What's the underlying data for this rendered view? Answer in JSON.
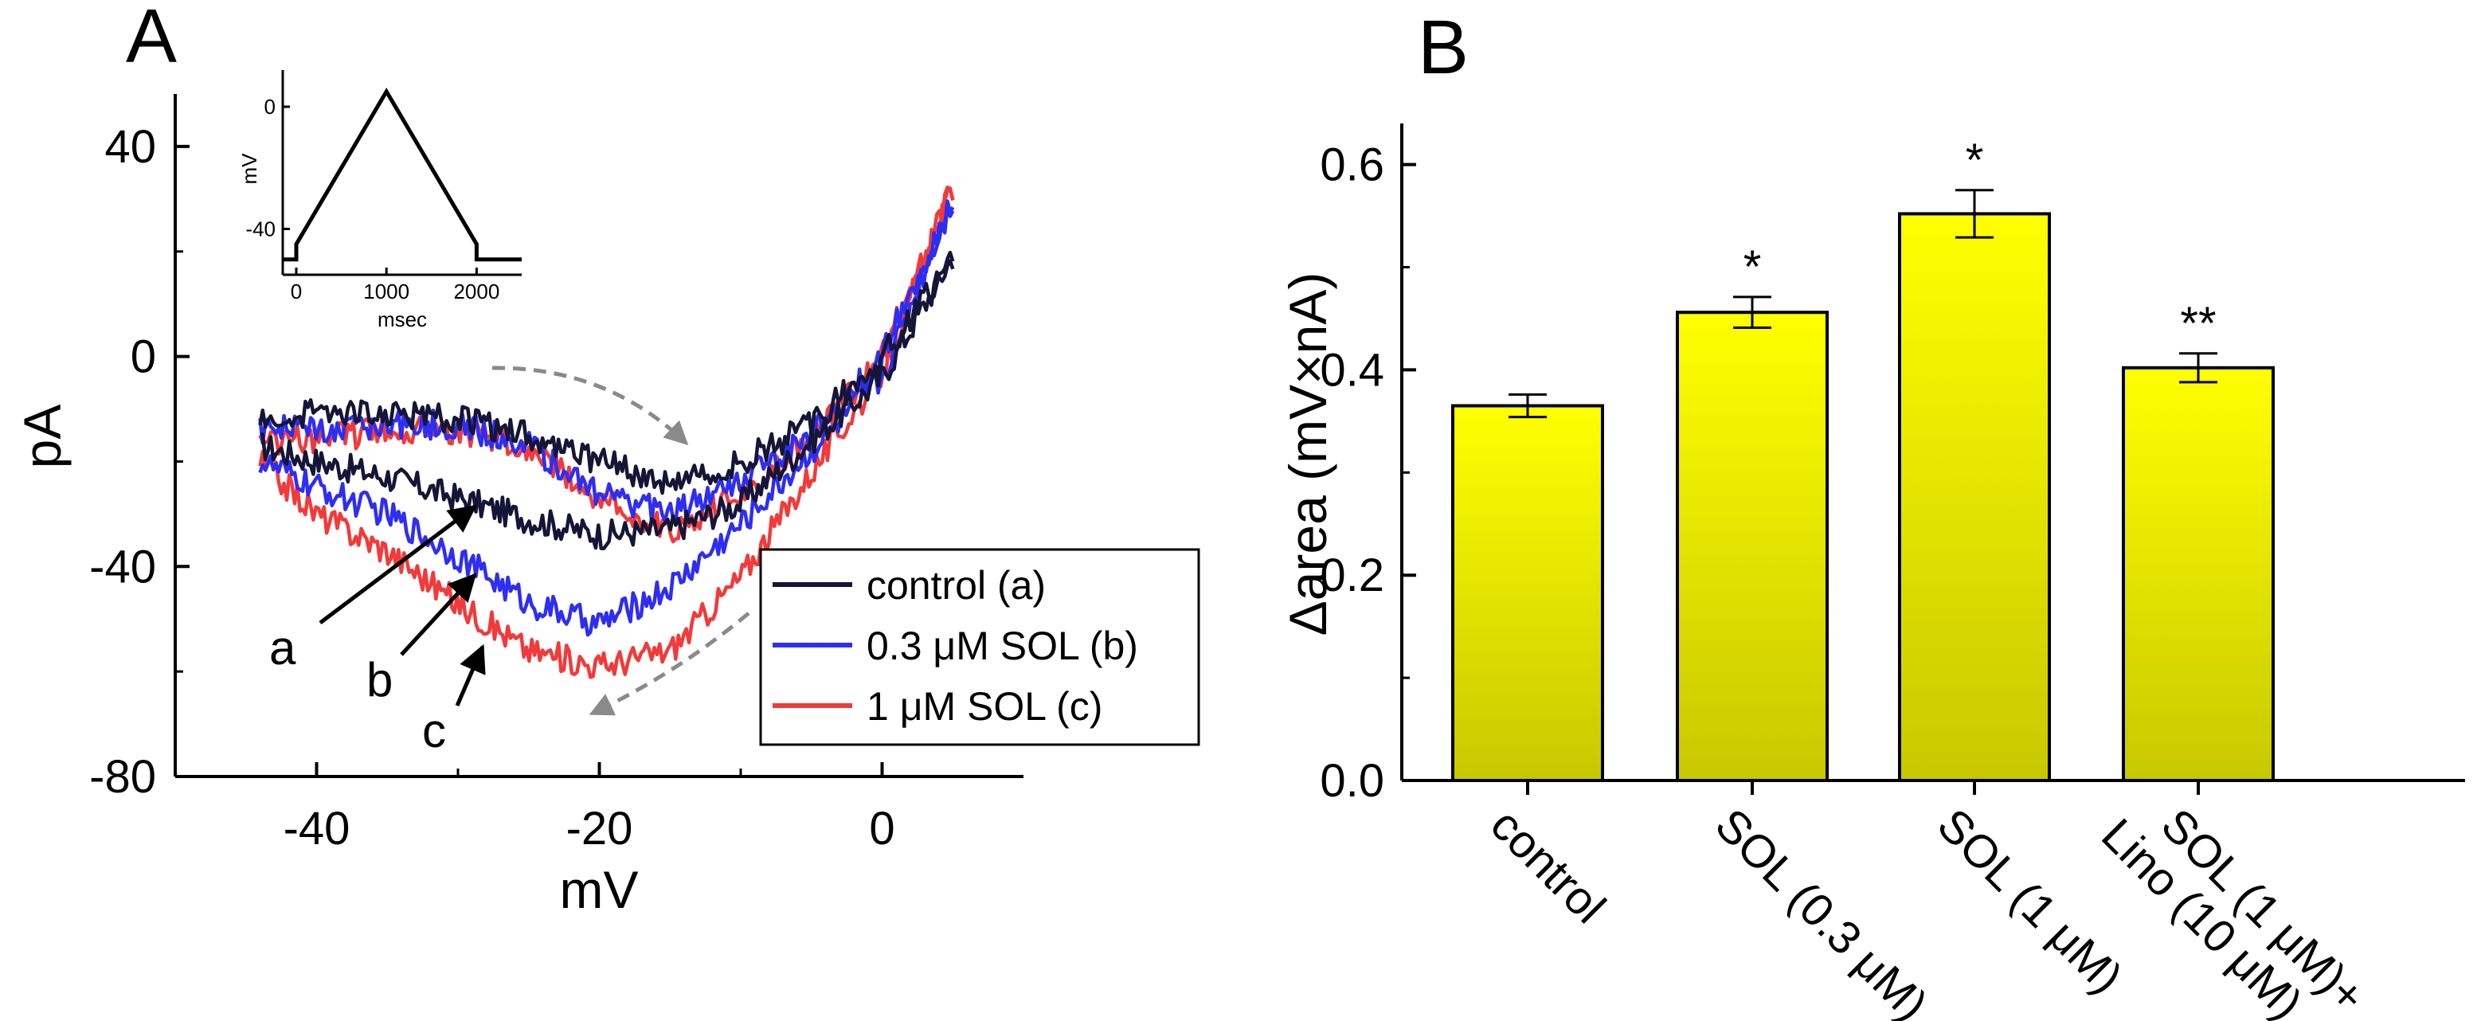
{
  "chart_data": [
    {
      "panel": "A",
      "type": "line",
      "title": "",
      "xlabel": "mV",
      "ylabel": "pA",
      "xlim": [
        -50,
        10
      ],
      "ylim": [
        -80,
        50
      ],
      "xticks": [
        -40,
        -20,
        0
      ],
      "yticks": [
        -80,
        -40,
        0,
        40
      ],
      "xtick_labels": [
        "-40",
        "-20",
        "0"
      ],
      "ytick_labels": [
        "-80",
        "-40",
        "0",
        "40"
      ],
      "grid": false,
      "legend_position": "bottom-right",
      "series": [
        {
          "name": "control (a)",
          "label_letter": "a",
          "color": "#151538",
          "up_x": [
            -44,
            -40,
            -35,
            -30,
            -25,
            -20,
            -15,
            -10,
            -5,
            0,
            5
          ],
          "up_y": [
            -17,
            -20,
            -23,
            -27,
            -31,
            -34,
            -33,
            -28,
            -16,
            -4,
            19
          ],
          "down_x": [
            5,
            0,
            -5,
            -10,
            -15,
            -20,
            -25,
            -30,
            -35,
            -40,
            -44
          ],
          "down_y": [
            19,
            0,
            -13,
            -20,
            -24,
            -20,
            -15,
            -12,
            -11,
            -11,
            -11
          ]
        },
        {
          "name": "0.3 μM SOL (b)",
          "label_letter": "b",
          "color": "#2e2ef2",
          "up_x": [
            -44,
            -40,
            -35,
            -30,
            -25,
            -20,
            -15,
            -10,
            -5,
            0,
            5
          ],
          "up_y": [
            -20,
            -25,
            -30,
            -38,
            -47,
            -51,
            -44,
            -32,
            -18,
            -4,
            30
          ],
          "down_x": [
            5,
            0,
            -5,
            -10,
            -15,
            -20,
            -25,
            -30,
            -35,
            -40,
            -44
          ],
          "down_y": [
            30,
            0,
            -15,
            -24,
            -30,
            -26,
            -17,
            -13,
            -13,
            -14,
            -14
          ]
        },
        {
          "name": "1 μM SOL (c)",
          "label_letter": "c",
          "color": "#f23a3a",
          "up_x": [
            -44,
            -40,
            -35,
            -30,
            -25,
            -20,
            -15,
            -10,
            -5,
            0,
            5
          ],
          "up_y": [
            -20,
            -30,
            -37,
            -47,
            -56,
            -59,
            -56,
            -42,
            -22,
            -3,
            32
          ],
          "down_x": [
            5,
            0,
            -5,
            -10,
            -15,
            -20,
            -25,
            -30,
            -35,
            -40,
            -44
          ],
          "down_y": [
            32,
            0,
            -16,
            -26,
            -33,
            -27,
            -17,
            -14,
            -14,
            -16,
            -16
          ]
        }
      ],
      "inset": {
        "type": "line",
        "xlabel": "msec",
        "ylabel": "mV",
        "xlim": [
          -150,
          2500
        ],
        "ylim": [
          -55,
          12
        ],
        "xtick_labels": [
          "0",
          "1000",
          "2000"
        ],
        "ytick_labels": [
          "0",
          "-40"
        ],
        "x": [
          -150,
          0,
          0,
          1000,
          2000,
          2000,
          2500
        ],
        "y": [
          -50,
          -50,
          -45,
          5,
          -45,
          -50,
          -50
        ]
      }
    },
    {
      "panel": "B",
      "type": "bar",
      "title": "",
      "xlabel": "",
      "ylabel": "Δarea (mV×nA)",
      "ylim": [
        0.0,
        0.64
      ],
      "yticks": [
        0.0,
        0.2,
        0.4,
        0.6
      ],
      "ytick_labels": [
        "0.0",
        "0.2",
        "0.4",
        "0.6"
      ],
      "categories": [
        "control",
        "SOL (0.3 μM)",
        "SOL (1 μM)",
        "SOL (1 μM)+"
      ],
      "category_second_lines": [
        "",
        "",
        "",
        "Lino (10 μM)"
      ],
      "values": [
        0.365,
        0.456,
        0.552,
        0.402
      ],
      "errors": [
        0.011,
        0.015,
        0.023,
        0.014
      ],
      "significance": [
        "",
        "*",
        "*",
        "**"
      ],
      "bar_color_top": "#ffff00",
      "bar_color_bottom": "#c8c800"
    }
  ],
  "panels": {
    "a": "A",
    "b": "B"
  }
}
